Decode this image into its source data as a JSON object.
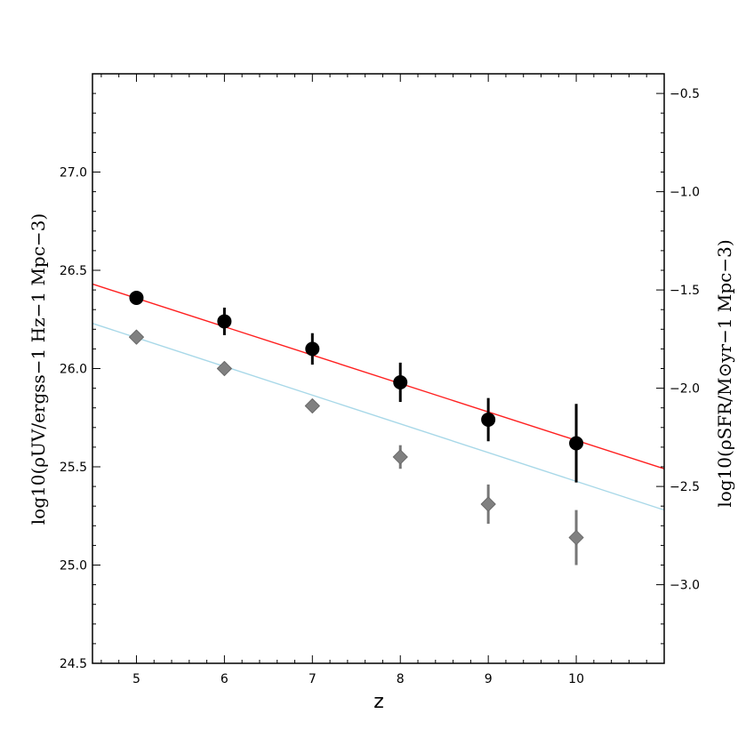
{
  "chart_data": {
    "type": "scatter",
    "title": "",
    "xlabel": "z",
    "ylabel_left": "log10(ρUV/ergss−1 Hz−1 Mpc−3)",
    "ylabel_right": "log10(ρSFR/M⊙yr−1 Mpc−3)",
    "xlim": [
      4.5,
      11.0
    ],
    "ylim_left": [
      24.5,
      27.5
    ],
    "ylim_right": [
      -3.4,
      -0.4
    ],
    "x_ticks": [
      "5",
      "6",
      "7",
      "8",
      "9",
      "10"
    ],
    "y_ticks_left": [
      "24.5",
      "25.0",
      "25.5",
      "26.0",
      "26.5",
      "27.0"
    ],
    "y_ticks_right": [
      "−3.0",
      "−2.5",
      "−2.0",
      "−1.5",
      "−1.0",
      "−0.5"
    ],
    "grid": false,
    "series": [
      {
        "style": "black circles with error bars",
        "color": "#000000",
        "x": [
          5,
          6,
          7,
          8,
          9,
          10
        ],
        "y": [
          26.36,
          26.24,
          26.1,
          25.93,
          25.74,
          25.62
        ],
        "yerr": [
          0.01,
          0.07,
          0.08,
          0.1,
          0.11,
          0.2
        ]
      },
      {
        "style": "grey diamonds with error bars",
        "color": "#808080",
        "x": [
          5,
          6,
          7,
          8,
          9,
          10
        ],
        "y": [
          26.16,
          26.0,
          25.81,
          25.55,
          25.31,
          25.14
        ],
        "yerr": [
          0.01,
          0.01,
          0.02,
          0.06,
          0.1,
          0.14
        ]
      }
    ],
    "fit_lines": [
      {
        "color": "#ff2020",
        "x": [
          4.5,
          11.0
        ],
        "y": [
          26.43,
          25.49
        ]
      },
      {
        "color": "#a8d8e8",
        "x": [
          4.5,
          11.0
        ],
        "y": [
          26.23,
          25.28
        ]
      }
    ]
  }
}
